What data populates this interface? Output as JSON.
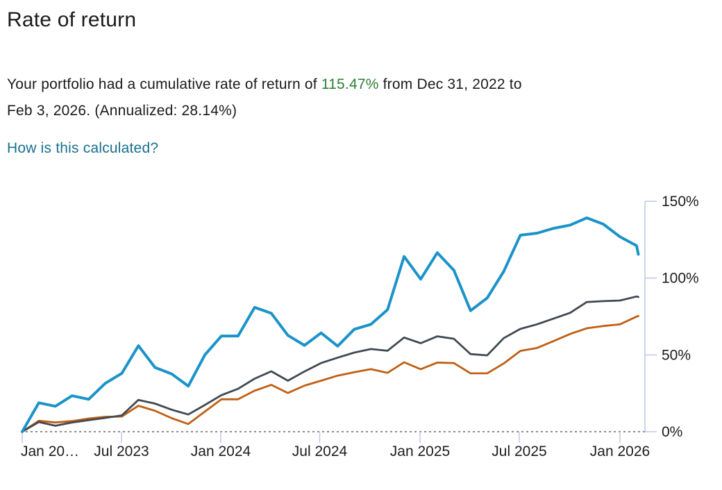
{
  "header": {
    "title": "Rate of return",
    "description": {
      "line1_before": "Your portfolio had a cumulative rate of return of ",
      "line1_highlight": "115.47%",
      "line1_after": " from Dec 31, 2022 to",
      "line2": "Feb 3, 2026. (Annualized: 28.14%)"
    },
    "link_label": "How is this calculated?"
  },
  "colors": {
    "highlight_green": "#2c7e32",
    "link_teal": "#16708f",
    "axis_light_blue": "#bcc8e6",
    "zero_line_gray": "#8c8c8c",
    "text": "#1c1c1c"
  },
  "chart_data": {
    "type": "line",
    "title": "",
    "xlabel": "",
    "ylabel": "",
    "ylim": [
      0,
      150
    ],
    "grid": "off",
    "legend": "none",
    "zero_line": "dotted",
    "y_axis_side": "right",
    "y_tick_labels": [
      "0%",
      "50%",
      "100%",
      "150%"
    ],
    "y_tick_values": [
      0,
      50,
      100,
      150
    ],
    "x_tick_labels": [
      "Jan 20…",
      "Jul 2023",
      "Jan 2024",
      "Jul 2024",
      "Jan 2025",
      "Jul 2025",
      "Jan 2026"
    ],
    "x": [
      "Dec 31, 2022",
      "Jan 2023",
      "Feb 2023",
      "Mar 2023",
      "Apr 2023",
      "May 2023",
      "Jun 2023",
      "Jul 2023",
      "Aug 2023",
      "Sep 2023",
      "Oct 2023",
      "Nov 2023",
      "Dec 2023",
      "Jan 2024",
      "Feb 2024",
      "Mar 2024",
      "Apr 2024",
      "May 2024",
      "Jun 2024",
      "Jul 2024",
      "Aug 2024",
      "Sep 2024",
      "Oct 2024",
      "Nov 2024",
      "Dec 2024",
      "Jan 2025",
      "Feb 2025",
      "Mar 2025",
      "Apr 2025",
      "May 2025",
      "Jun 2025",
      "Jul 2025",
      "Aug 2025",
      "Sep 2025",
      "Oct 2025",
      "Nov 2025",
      "Dec 2025",
      "Jan 2026",
      "Feb 3, 2026"
    ],
    "series": [
      {
        "name": "portfolio",
        "color": "#1b93c9",
        "stroke_width": 4,
        "values": [
          0,
          18.8,
          16.6,
          23.4,
          21.1,
          31.5,
          38.0,
          56.0,
          41.8,
          37.6,
          29.7,
          50.0,
          62.3,
          62.3,
          80.9,
          77.1,
          62.7,
          56.2,
          64.3,
          55.7,
          66.7,
          69.9,
          79.4,
          114.1,
          99.3,
          116.5,
          105.1,
          78.8,
          87.0,
          104.3,
          127.9,
          129.2,
          132.4,
          134.5,
          139.2,
          135.1,
          126.9,
          121.1,
          115.47
        ]
      },
      {
        "name": "gray",
        "color": "#404952",
        "stroke_width": 2.8,
        "values": [
          0,
          6.3,
          3.9,
          6.0,
          7.5,
          9.0,
          10.6,
          20.7,
          18.3,
          14.3,
          11.2,
          17.4,
          23.8,
          27.9,
          34.5,
          39.3,
          33.2,
          39.2,
          44.7,
          48.2,
          51.5,
          53.8,
          52.7,
          61.3,
          57.6,
          62.1,
          60.5,
          50.5,
          49.7,
          60.9,
          66.9,
          69.9,
          73.6,
          77.4,
          84.4,
          85.0,
          85.4,
          88.0,
          87.7
        ]
      },
      {
        "name": "orange",
        "color": "#c05f13",
        "stroke_width": 2.8,
        "values": [
          0,
          7.1,
          6.0,
          6.9,
          8.6,
          9.7,
          9.9,
          16.9,
          13.6,
          8.8,
          5.0,
          13.1,
          21.1,
          21.1,
          26.7,
          30.5,
          25.2,
          30.0,
          33.2,
          36.5,
          38.7,
          40.7,
          38.3,
          45.2,
          40.7,
          45.0,
          44.7,
          38.0,
          38.0,
          44.4,
          52.6,
          54.5,
          59.0,
          63.6,
          67.3,
          68.8,
          69.9,
          74.9,
          75.3
        ]
      }
    ]
  }
}
